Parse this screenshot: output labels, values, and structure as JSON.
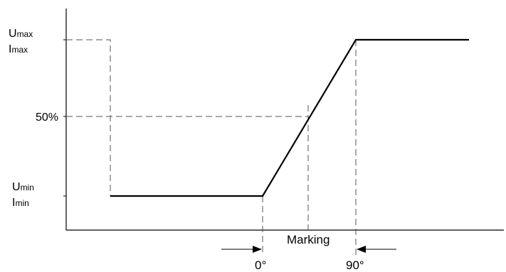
{
  "diagram": {
    "y_labels": {
      "max_u": {
        "main": "U",
        "sub": "max"
      },
      "max_i": {
        "main": "I",
        "sub": "max"
      },
      "half": "50%",
      "min_u": {
        "main": "U",
        "sub": "min"
      },
      "min_i": {
        "main": "I",
        "sub": "min"
      }
    },
    "x_labels": {
      "start": "0°",
      "end": "90°",
      "marking": "Marking"
    }
  }
}
